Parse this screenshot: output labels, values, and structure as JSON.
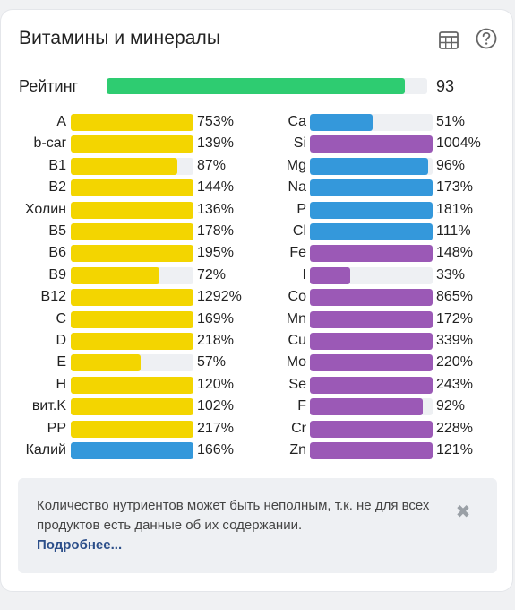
{
  "header": {
    "title": "Витамины и минералы",
    "icons": [
      "table-icon",
      "help-icon"
    ]
  },
  "rating": {
    "label": "Рейтинг",
    "value": "93",
    "fraction": 0.93,
    "color": "#2ecc71"
  },
  "colors": {
    "yellow": "#f3d500",
    "blue": "#3498db",
    "purple": "#9b59b6",
    "track": "#eef0f3"
  },
  "vitamins": [
    {
      "label": "A",
      "pct": "753%",
      "fill": 1.0,
      "color": "yellow"
    },
    {
      "label": "b-car",
      "pct": "139%",
      "fill": 1.0,
      "color": "yellow"
    },
    {
      "label": "B1",
      "pct": "87%",
      "fill": 0.87,
      "color": "yellow"
    },
    {
      "label": "B2",
      "pct": "144%",
      "fill": 1.0,
      "color": "yellow"
    },
    {
      "label": "Холин",
      "pct": "136%",
      "fill": 1.0,
      "color": "yellow"
    },
    {
      "label": "B5",
      "pct": "178%",
      "fill": 1.0,
      "color": "yellow"
    },
    {
      "label": "B6",
      "pct": "195%",
      "fill": 1.0,
      "color": "yellow"
    },
    {
      "label": "B9",
      "pct": "72%",
      "fill": 0.72,
      "color": "yellow"
    },
    {
      "label": "B12",
      "pct": "1292%",
      "fill": 1.0,
      "color": "yellow"
    },
    {
      "label": "C",
      "pct": "169%",
      "fill": 1.0,
      "color": "yellow"
    },
    {
      "label": "D",
      "pct": "218%",
      "fill": 1.0,
      "color": "yellow"
    },
    {
      "label": "E",
      "pct": "57%",
      "fill": 0.57,
      "color": "yellow"
    },
    {
      "label": "H",
      "pct": "120%",
      "fill": 1.0,
      "color": "yellow"
    },
    {
      "label": "вит.K",
      "pct": "102%",
      "fill": 1.0,
      "color": "yellow"
    },
    {
      "label": "PP",
      "pct": "217%",
      "fill": 1.0,
      "color": "yellow"
    },
    {
      "label": "Калий",
      "pct": "166%",
      "fill": 1.0,
      "color": "blue"
    }
  ],
  "minerals": [
    {
      "label": "Ca",
      "pct": "51%",
      "fill": 0.51,
      "color": "blue"
    },
    {
      "label": "Si",
      "pct": "1004%",
      "fill": 1.0,
      "color": "purple"
    },
    {
      "label": "Mg",
      "pct": "96%",
      "fill": 0.96,
      "color": "blue"
    },
    {
      "label": "Na",
      "pct": "173%",
      "fill": 1.0,
      "color": "blue"
    },
    {
      "label": "P",
      "pct": "181%",
      "fill": 1.0,
      "color": "blue"
    },
    {
      "label": "Cl",
      "pct": "111%",
      "fill": 1.0,
      "color": "blue"
    },
    {
      "label": "Fe",
      "pct": "148%",
      "fill": 1.0,
      "color": "purple"
    },
    {
      "label": "I",
      "pct": "33%",
      "fill": 0.33,
      "color": "purple"
    },
    {
      "label": "Co",
      "pct": "865%",
      "fill": 1.0,
      "color": "purple"
    },
    {
      "label": "Mn",
      "pct": "172%",
      "fill": 1.0,
      "color": "purple"
    },
    {
      "label": "Cu",
      "pct": "339%",
      "fill": 1.0,
      "color": "purple"
    },
    {
      "label": "Mo",
      "pct": "220%",
      "fill": 1.0,
      "color": "purple"
    },
    {
      "label": "Se",
      "pct": "243%",
      "fill": 1.0,
      "color": "purple"
    },
    {
      "label": "F",
      "pct": "92%",
      "fill": 0.92,
      "color": "purple"
    },
    {
      "label": "Cr",
      "pct": "228%",
      "fill": 1.0,
      "color": "purple"
    },
    {
      "label": "Zn",
      "pct": "121%",
      "fill": 1.0,
      "color": "purple"
    }
  ],
  "notice": {
    "text": "Количество нутриентов может быть неполным, т.к. не для всех продуктов есть данные об их содержании.",
    "link": "Подробнее...",
    "close": "✖"
  }
}
